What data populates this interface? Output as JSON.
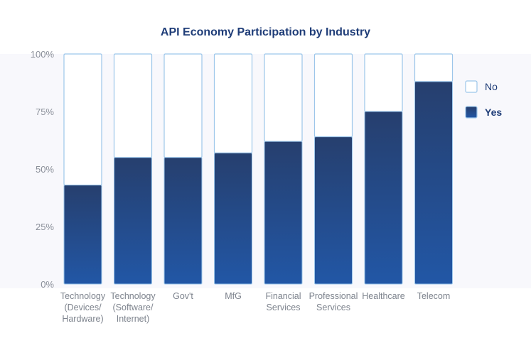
{
  "chart_data": {
    "type": "bar",
    "stacked": true,
    "title": "API Economy Participation by Industry",
    "categories": [
      [
        "Technology",
        "(Devices/",
        "Hardware)"
      ],
      [
        "Technology",
        "(Software/",
        "Internet)"
      ],
      [
        "Gov't"
      ],
      [
        "MfG"
      ],
      [
        "Financial",
        "Services"
      ],
      [
        "Professional",
        "Services"
      ],
      [
        "Healthcare"
      ],
      [
        "Telecom"
      ]
    ],
    "series": [
      {
        "name": "Yes",
        "values": [
          43,
          55,
          55,
          57,
          62,
          64,
          75,
          88
        ]
      },
      {
        "name": "No",
        "values": [
          57,
          45,
          45,
          43,
          38,
          36,
          25,
          12
        ]
      }
    ],
    "ylim": [
      0,
      100
    ],
    "yticks": [
      "0%",
      "25%",
      "50%",
      "75%",
      "100%"
    ],
    "legend": {
      "position": "right",
      "items": [
        {
          "label": "No",
          "style": "outline"
        },
        {
          "label": "Yes",
          "style": "filled"
        }
      ]
    },
    "colors": {
      "yes_top": "#263f6e",
      "yes_bottom": "#2257a6",
      "no_fill": "#ffffff",
      "bar_outline": "#9cc6ea",
      "plot_background": "#f8f8fc",
      "title": "#1f3d78"
    }
  }
}
